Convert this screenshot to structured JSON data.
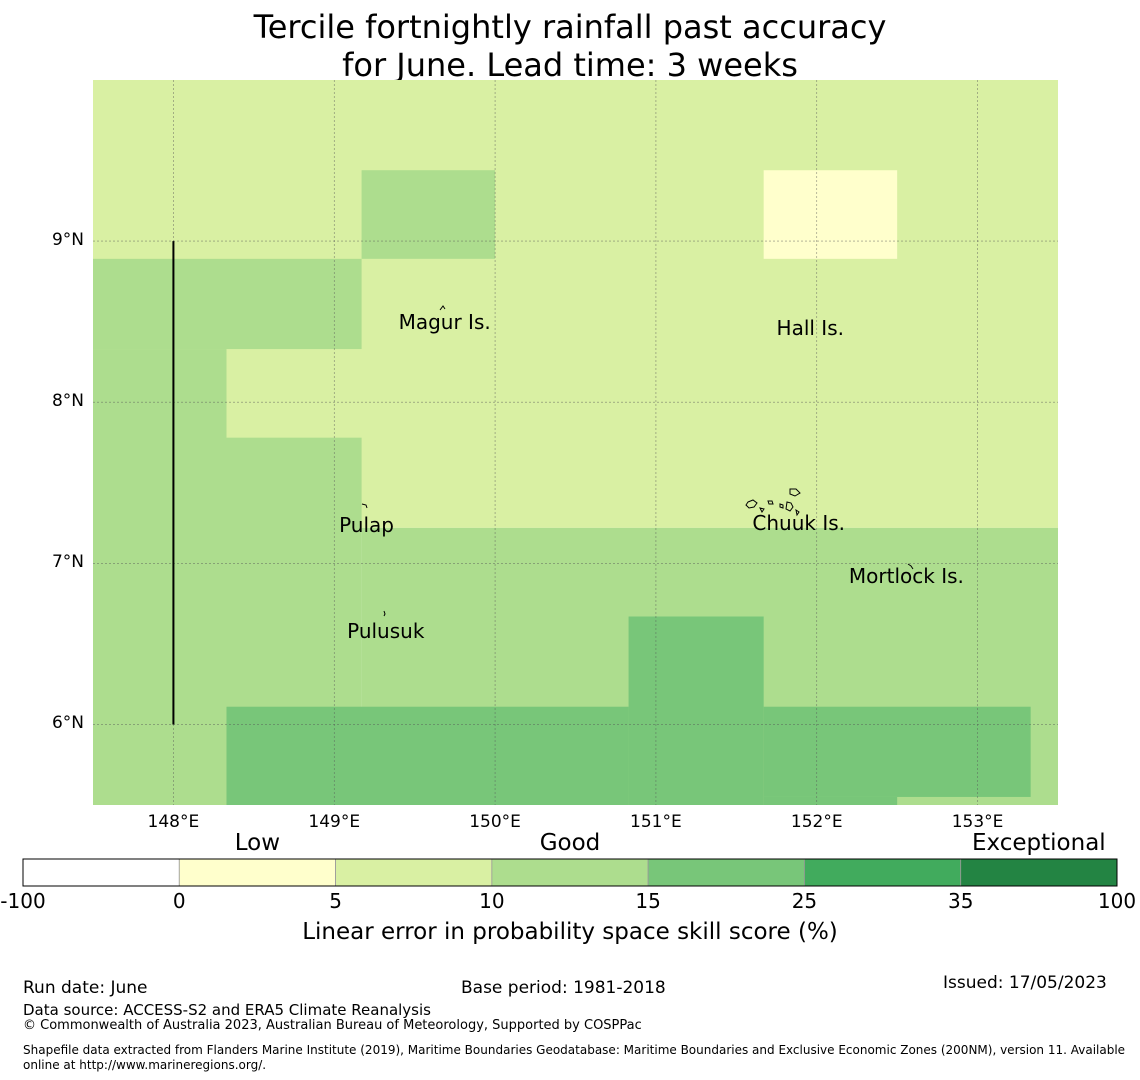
{
  "title": {
    "line1": "Tercile fortnightly rainfall past accuracy",
    "line2": "for June. Lead time: 3 weeks"
  },
  "map": {
    "lon_ticks": [
      "148°E",
      "149°E",
      "150°E",
      "151°E",
      "152°E",
      "153°E"
    ],
    "lat_ticks": [
      "9°N",
      "8°N",
      "7°N",
      "6°N"
    ],
    "extent": {
      "lon_min": 147.5,
      "lon_max": 153.5,
      "lat_min": 5.5,
      "lat_max": 10.0
    },
    "places": [
      {
        "name": "Magur Is.",
        "lon": 149.4,
        "lat": 8.5
      },
      {
        "name": "Hall Is.",
        "lon": 151.75,
        "lat": 8.46
      },
      {
        "name": "Pulap",
        "lon": 149.03,
        "lat": 7.24
      },
      {
        "name": "Chuuk Is.",
        "lon": 151.6,
        "lat": 7.25
      },
      {
        "name": "Mortlock Is.",
        "lon": 152.2,
        "lat": 6.92
      },
      {
        "name": "Pulusuk",
        "lon": 149.08,
        "lat": 6.58
      }
    ],
    "grid_cells": [
      {
        "lon0": 147.5,
        "lon1": 153.5,
        "lat0": 7.22,
        "lat1": 10.0,
        "class": 2
      },
      {
        "lon0": 149.17,
        "lon1": 150.0,
        "lat0": 8.89,
        "lat1": 9.44,
        "class": 3
      },
      {
        "lon0": 151.67,
        "lon1": 152.5,
        "lat0": 8.89,
        "lat1": 9.44,
        "class": 1
      },
      {
        "lon0": 147.5,
        "lon1": 149.17,
        "lat0": 8.33,
        "lat1": 8.89,
        "class": 3
      },
      {
        "lon0": 147.5,
        "lon1": 148.33,
        "lat0": 5.5,
        "lat1": 8.33,
        "class": 3
      },
      {
        "lon0": 148.33,
        "lon1": 149.17,
        "lat0": 5.5,
        "lat1": 7.78,
        "class": 3
      },
      {
        "lon0": 149.17,
        "lon1": 153.5,
        "lat0": 5.5,
        "lat1": 7.22,
        "class": 3
      },
      {
        "lon0": 148.33,
        "lon1": 150.83,
        "lat0": 5.5,
        "lat1": 6.11,
        "class": 4
      },
      {
        "lon0": 150.83,
        "lon1": 151.67,
        "lat0": 5.5,
        "lat1": 6.67,
        "class": 4
      },
      {
        "lon0": 151.67,
        "lon1": 153.33,
        "lat0": 5.55,
        "lat1": 6.11,
        "class": 4
      },
      {
        "lon0": 151.67,
        "lon1": 152.5,
        "lat0": 5.5,
        "lat1": 5.55,
        "class": 4
      }
    ],
    "boundary_line": {
      "lon": 148.0,
      "lat0": 6.0,
      "lat1": 9.0
    }
  },
  "colorbar": {
    "categories": [
      {
        "label": "Low",
        "at": 1
      },
      {
        "label": "Good",
        "at": 3
      },
      {
        "label": "Exceptional",
        "at": 6
      }
    ],
    "ticks": [
      "-100",
      "0",
      "5",
      "10",
      "15",
      "25",
      "35",
      "100"
    ],
    "colors": [
      "#ffffff",
      "#ffffcc",
      "#d9f0a3",
      "#addd8e",
      "#78c679",
      "#41ab5d",
      "#238443"
    ],
    "label": "Linear error in probability space skill score (%)"
  },
  "footer": {
    "run_date": "Run date: June",
    "base_period": "Base period: 1981-2018",
    "issued": "Issued: 17/05/2023",
    "data_source": "Data source: ACCESS-S2 and ERA5 Climate Reanalysis",
    "copyright": "© Commonwealth of Australia 2023, Australian Bureau of Meteorology, Supported by COSPPac",
    "shapefile_line1": "Shapefile data extracted from Flanders Marine Institute (2019), Maritime Boundaries Geodatabase: Maritime Boundaries and Exclusive Economic Zones (200NM), version 11. Available",
    "shapefile_line2": "online at http://www.marineregions.org/."
  }
}
